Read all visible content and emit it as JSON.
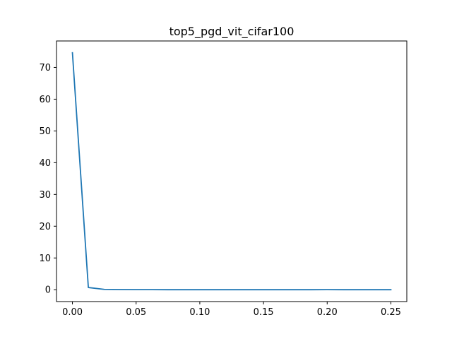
{
  "chart_data": {
    "type": "line",
    "title": "top5_pgd_vit_cifar100",
    "xlabel": "",
    "ylabel": "",
    "xlim": [
      -0.0125,
      0.2625
    ],
    "ylim": [
      -3.73,
      78.33
    ],
    "x_ticks": [
      0.0,
      0.05,
      0.1,
      0.15,
      0.2,
      0.25
    ],
    "x_tick_labels": [
      "0.00",
      "0.05",
      "0.10",
      "0.15",
      "0.20",
      "0.25"
    ],
    "y_ticks": [
      0,
      10,
      20,
      30,
      40,
      50,
      60,
      70
    ],
    "y_tick_labels": [
      "0",
      "10",
      "20",
      "30",
      "40",
      "50",
      "60",
      "70"
    ],
    "grid": false,
    "series": [
      {
        "color": "#1f77b4",
        "x": [
          0.0,
          0.0125,
          0.025,
          0.0375,
          0.05,
          0.0625,
          0.075,
          0.0875,
          0.1,
          0.1125,
          0.125,
          0.1375,
          0.15,
          0.1625,
          0.175,
          0.1875,
          0.2,
          0.2125,
          0.225,
          0.2375,
          0.25
        ],
        "values": [
          74.6,
          0.7,
          0.1,
          0.05,
          0.02,
          0.02,
          0.01,
          0.01,
          0.01,
          0.01,
          0.01,
          0.01,
          0.01,
          0.01,
          0.01,
          0.01,
          0.02,
          0.01,
          0.01,
          0.01,
          0.01
        ]
      }
    ]
  }
}
